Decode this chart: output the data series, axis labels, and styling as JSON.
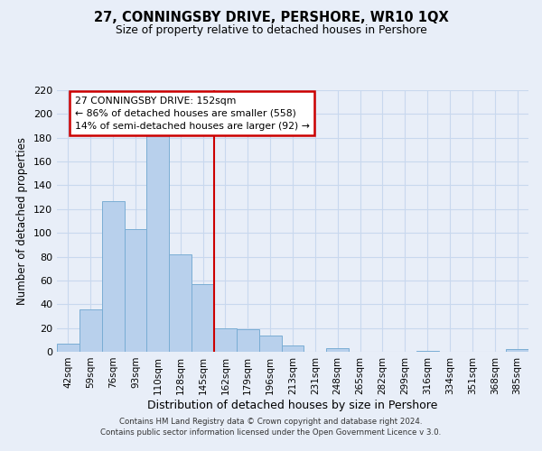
{
  "title": "27, CONNINGSBY DRIVE, PERSHORE, WR10 1QX",
  "subtitle": "Size of property relative to detached houses in Pershore",
  "xlabel": "Distribution of detached houses by size in Pershore",
  "ylabel": "Number of detached properties",
  "bar_labels": [
    "42sqm",
    "59sqm",
    "76sqm",
    "93sqm",
    "110sqm",
    "128sqm",
    "145sqm",
    "162sqm",
    "179sqm",
    "196sqm",
    "213sqm",
    "231sqm",
    "248sqm",
    "265sqm",
    "282sqm",
    "299sqm",
    "316sqm",
    "334sqm",
    "351sqm",
    "368sqm",
    "385sqm"
  ],
  "bar_values": [
    7,
    36,
    127,
    103,
    182,
    82,
    57,
    20,
    19,
    14,
    5,
    0,
    3,
    0,
    0,
    0,
    1,
    0,
    0,
    0,
    2
  ],
  "bar_color": "#b8d0ec",
  "bar_edge_color": "#7aadd4",
  "vline_x_index": 6.5,
  "vline_color": "#cc0000",
  "annotation_title": "27 CONNINGSBY DRIVE: 152sqm",
  "annotation_line1": "← 86% of detached houses are smaller (558)",
  "annotation_line2": "14% of semi-detached houses are larger (92) →",
  "annotation_box_facecolor": "#ffffff",
  "annotation_box_edgecolor": "#cc0000",
  "ylim": [
    0,
    220
  ],
  "yticks": [
    0,
    20,
    40,
    60,
    80,
    100,
    120,
    140,
    160,
    180,
    200,
    220
  ],
  "footer_line1": "Contains HM Land Registry data © Crown copyright and database right 2024.",
  "footer_line2": "Contains public sector information licensed under the Open Government Licence v 3.0.",
  "grid_color": "#c8d8ee",
  "background_color": "#e8eef8"
}
